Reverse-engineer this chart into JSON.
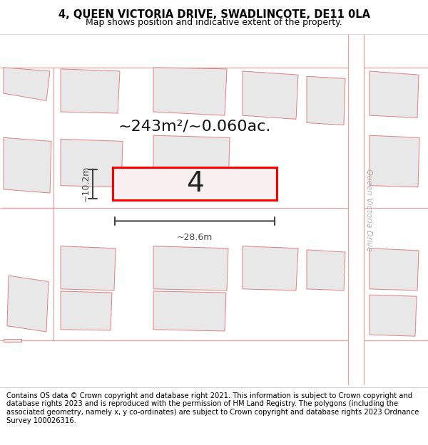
{
  "title": "4, QUEEN VICTORIA DRIVE, SWADLINCOTE, DE11 0LA",
  "subtitle": "Map shows position and indicative extent of the property.",
  "footer": "Contains OS data © Crown copyright and database right 2021. This information is subject to Crown copyright and database rights 2023 and is reproduced with the permission of HM Land Registry. The polygons (including the associated geometry, namely x, y co-ordinates) are subject to Crown copyright and database rights 2023 Ordnance Survey 100026316.",
  "bg_color": "#ffffff",
  "road_line_color": "#e8a0a0",
  "highlight_color": "#ff0000",
  "dim_color": "#444444",
  "street_label": "Queen Victoria Drive",
  "area_label": "~243m²/~0.060ac.",
  "number_label": "4",
  "width_label": "~28.6m",
  "height_label": "~10.2m",
  "title_fontsize": 10.5,
  "subtitle_fontsize": 9,
  "footer_fontsize": 7.2,
  "poly_face": "#e8e8e8",
  "poly_edge": "#e08080"
}
